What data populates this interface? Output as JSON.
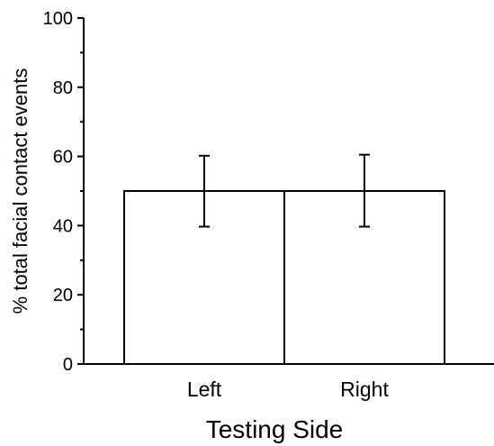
{
  "chart_data": {
    "type": "bar",
    "categories": [
      "Left",
      "Right"
    ],
    "values": [
      50,
      50
    ],
    "error_low": [
      39.7,
      39.7
    ],
    "error_high": [
      60.2,
      60.5
    ],
    "xlabel": "Testing Side",
    "ylabel": "% total facial contact events",
    "ylim": [
      0,
      100
    ],
    "yticks": [
      0,
      20,
      40,
      60,
      80,
      100
    ],
    "grid": false,
    "bar_fill": "#ffffff",
    "stroke_color": "#000000"
  }
}
